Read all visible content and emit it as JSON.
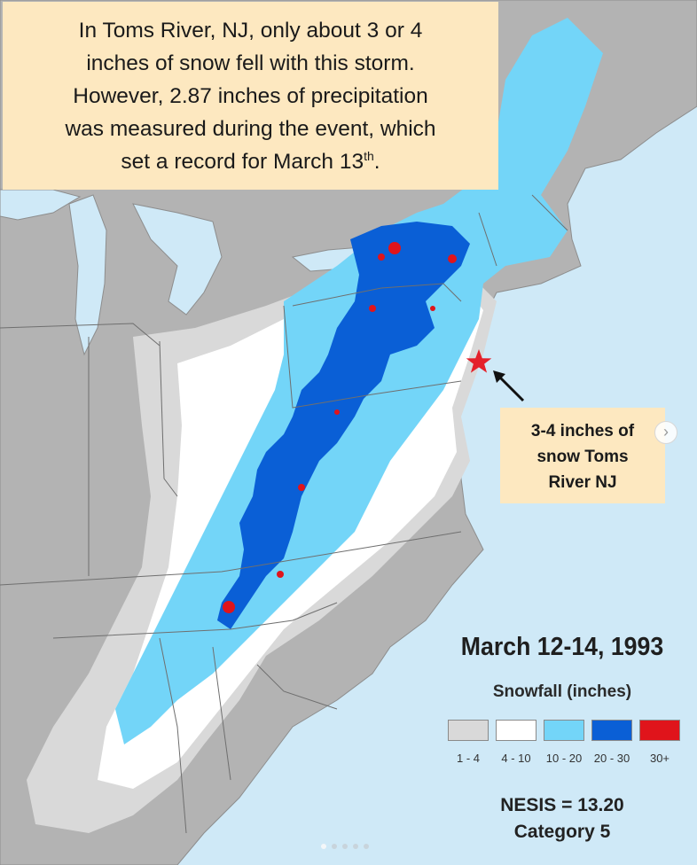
{
  "caption": {
    "line1": "In Toms River, NJ, only about 3 or 4",
    "line2": "inches of snow fell with this storm.",
    "line3": "However, 2.87 inches of precipitation",
    "line4": "was measured during the event, which",
    "line5_prefix": "set a record for March 13",
    "line5_sup": "th",
    "line5_suffix": "."
  },
  "callout": {
    "line1": "3-4 inches of",
    "line2": "snow Toms",
    "line3": "River NJ"
  },
  "legend": {
    "title": "March 12-14, 1993",
    "subtitle": "Snowfall (inches)",
    "bins": [
      {
        "label": "1 - 4",
        "color": "#d9d9d9"
      },
      {
        "label": "4 - 10",
        "color": "#ffffff"
      },
      {
        "label": "10 - 20",
        "color": "#73d5f8"
      },
      {
        "label": "20 - 30",
        "color": "#0a5fd6"
      },
      {
        "label": "30+",
        "color": "#e0141b"
      }
    ]
  },
  "index": {
    "score": "NESIS = 13.20",
    "category": "Category 5"
  },
  "colors": {
    "ocean": "#cfe9f7",
    "land": "#b3b3b3",
    "star": "#e4202a"
  },
  "marker": {
    "icon": "star-icon",
    "place": "Toms River NJ"
  },
  "nav": {
    "icon": "chevron-right-icon"
  }
}
